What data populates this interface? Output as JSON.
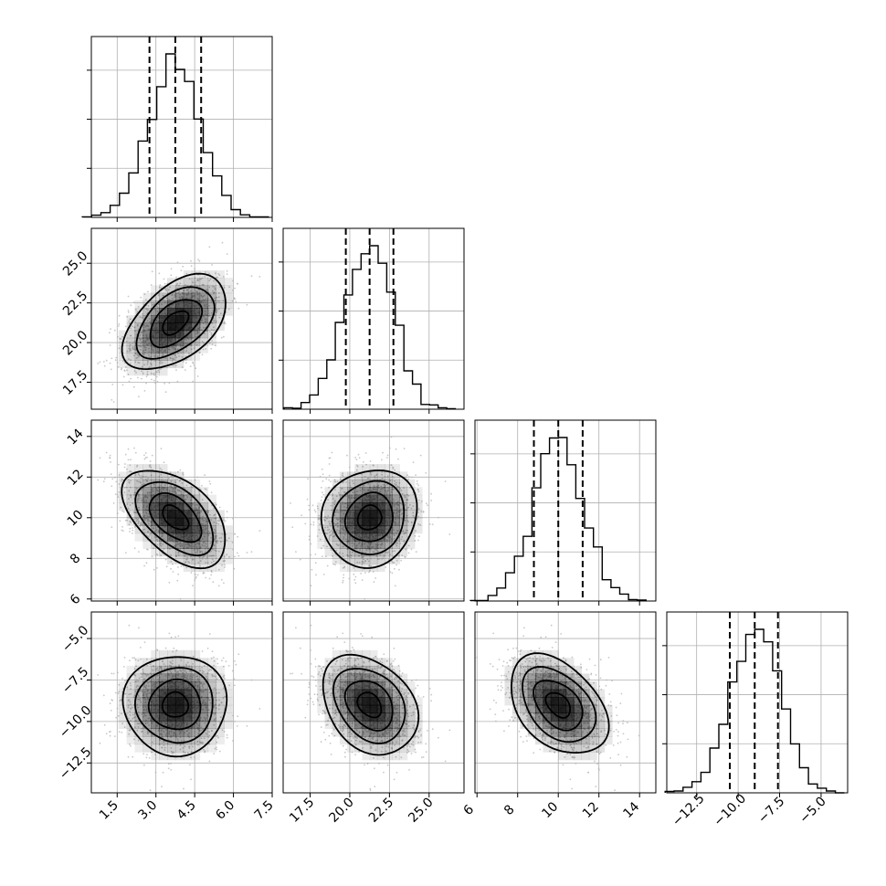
{
  "chart_data": {
    "type": "corner",
    "parameters": 4,
    "quantiles": [
      0.16,
      0.5,
      0.84
    ],
    "ranges": [
      [
        0.5,
        7.5
      ],
      [
        15.8,
        27.2
      ],
      [
        5.9,
        14.8
      ],
      [
        -14.3,
        -3.4
      ]
    ],
    "ticks": [
      {
        "values": [
          1.5,
          3.0,
          4.5,
          6.0,
          7.5
        ],
        "labels": [
          "1.5",
          "3.0",
          "4.5",
          "6.0",
          "7.5"
        ]
      },
      {
        "values": [
          17.5,
          20.0,
          22.5,
          25.0
        ],
        "labels": [
          "17.5",
          "20.0",
          "22.5",
          "25.0"
        ]
      },
      {
        "values": [
          6,
          8,
          10,
          12,
          14
        ],
        "labels": [
          "6",
          "8",
          "10",
          "12",
          "14"
        ]
      },
      {
        "values": [
          -12.5,
          -10.0,
          -7.5,
          -5.0
        ],
        "labels": [
          "−12.5",
          "−10.0",
          "−7.5",
          "−5.0"
        ]
      }
    ],
    "marginals": [
      {
        "mean": 3.75,
        "std": 1.0,
        "quantile_values": [
          2.75,
          3.75,
          4.75
        ]
      },
      {
        "mean": 21.25,
        "std": 1.5,
        "quantile_values": [
          19.75,
          21.25,
          22.75
        ]
      },
      {
        "mean": 10.0,
        "std": 1.2,
        "quantile_values": [
          8.8,
          10.0,
          11.2
        ]
      },
      {
        "mean": -9.0,
        "std": 1.5,
        "quantile_values": [
          -10.5,
          -9.0,
          -7.6
        ]
      }
    ],
    "correlations": {
      "0-1": 0.5,
      "0-2": -0.5,
      "0-3": 0.0,
      "1-2": 0.1,
      "1-3": -0.3,
      "2-3": -0.4
    },
    "grid": true,
    "colors": {
      "line": "#000000",
      "scatter": "#b0b0b0",
      "grid": "#b0b0b0",
      "density": "#000000"
    }
  }
}
